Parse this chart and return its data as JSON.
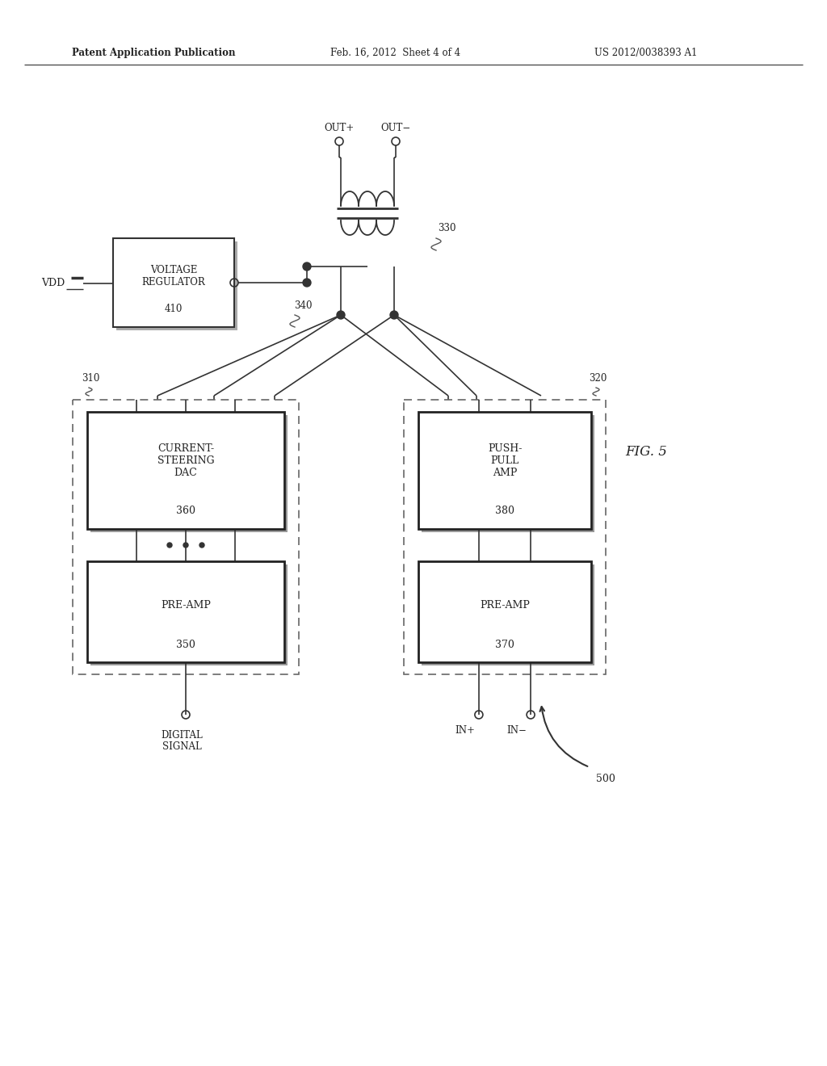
{
  "background_color": "#ffffff",
  "header_left": "Patent Application Publication",
  "header_center": "Feb. 16, 2012  Sheet 4 of 4",
  "header_right": "US 2012/0038393 A1",
  "line_color": "#333333",
  "text_color": "#222222"
}
